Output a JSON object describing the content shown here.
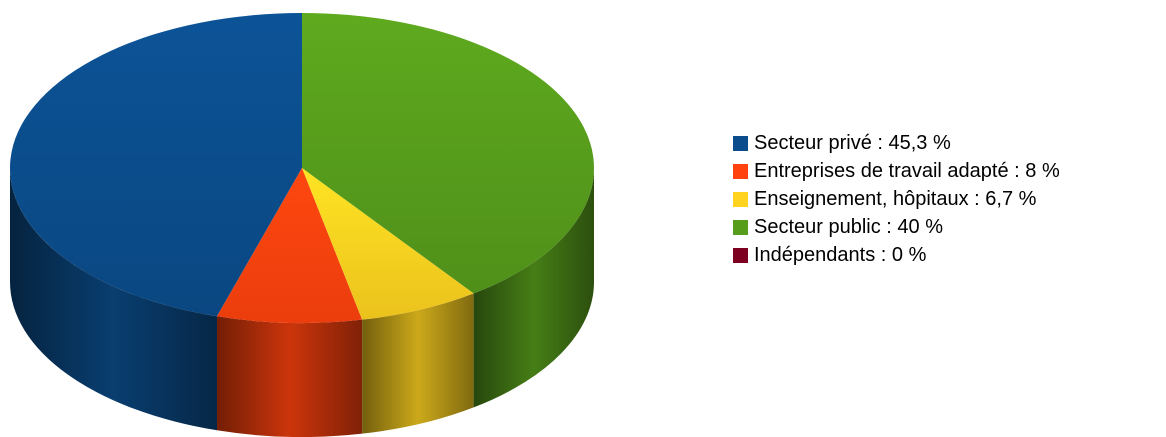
{
  "chart_data": {
    "type": "pie",
    "style": "3d",
    "legend_position": "right",
    "slices": [
      {
        "label": "Secteur privé : 45,3 %",
        "name": "Secteur privé",
        "value": 45.3,
        "color": "#0b4d8c"
      },
      {
        "label": "Entreprises de travail adapté : 8 %",
        "name": "Entreprises de travail adapté",
        "value": 8,
        "color": "#ff420e"
      },
      {
        "label": "Enseignement, hôpitaux : 6,7 %",
        "name": "Enseignement, hôpitaux",
        "value": 6.7,
        "color": "#ffd320"
      },
      {
        "label": "Secteur public : 40 %",
        "name": "Secteur public",
        "value": 40,
        "color": "#579d1c"
      },
      {
        "label": "Indépendants : 0 %",
        "name": "Indépendants",
        "value": 0,
        "color": "#7e0021"
      }
    ]
  }
}
